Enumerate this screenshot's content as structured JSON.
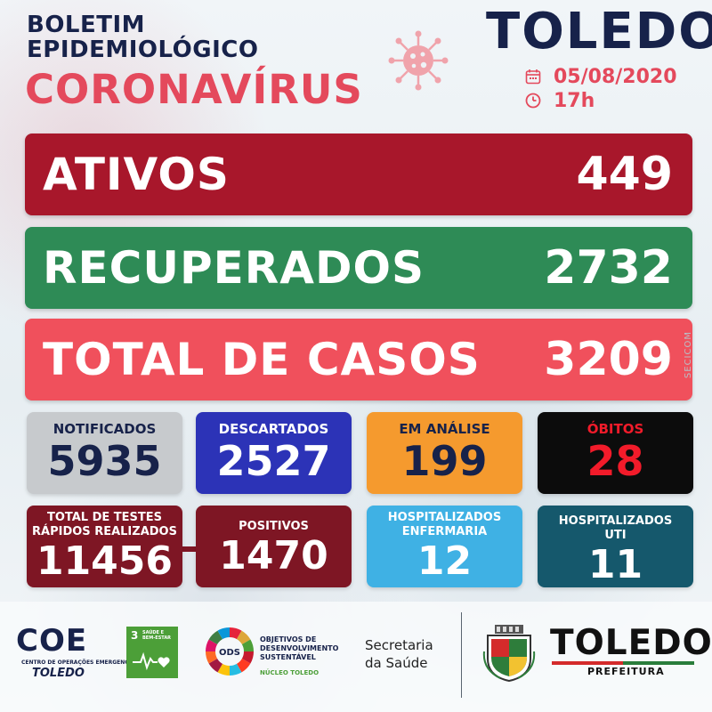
{
  "header": {
    "title_line1": "BOLETIM",
    "title_line2": "EPIDEMIOLÓGICO",
    "subtitle": "CORONAVÍRUS",
    "city": "TOLEDO",
    "date": "05/08/2020",
    "time": "17h",
    "icons": {
      "virus": "virus-icon",
      "date": "calendar-icon",
      "time": "clock-icon"
    }
  },
  "bars": {
    "ativos": {
      "label": "ATIVOS",
      "value": "449",
      "color": "#a8172b"
    },
    "recuperados": {
      "label": "RECUPERADOS",
      "value": "2732",
      "color": "#2e8b56"
    },
    "total": {
      "label": "TOTAL DE CASOS",
      "value": "3209",
      "color": "#f0505c"
    }
  },
  "cards": {
    "notificados": {
      "label": "NOTIFICADOS",
      "value": "5935"
    },
    "descartados": {
      "label": "DESCARTADOS",
      "value": "2527"
    },
    "em_analise": {
      "label": "EM ANÁLISE",
      "value": "199"
    },
    "obitos": {
      "label": "ÓBITOS",
      "value": "28"
    },
    "testes": {
      "label_line1": "TOTAL DE TESTES",
      "label_line2": "RÁPIDOS REALIZADOS",
      "value": "11456"
    },
    "positivos": {
      "label": "POSITIVOS",
      "value": "1470"
    },
    "enfermaria": {
      "label_line1": "HOSPITALIZADOS",
      "label_line2": "ENFERMARIA",
      "value": "12"
    },
    "uti": {
      "label_line1": "HOSPITALIZADOS",
      "label_line2": "UTI",
      "value": "11"
    }
  },
  "watermark": "SECICOM",
  "footer": {
    "coe": {
      "word": "COE",
      "sub": "CENTRO DE OPERAÇÕES EMERGENCIAIS",
      "city": "TOLEDO"
    },
    "sdg3": {
      "number": "3",
      "text_line1": "SAÚDE E",
      "text_line2": "BEM-ESTAR"
    },
    "ods": {
      "wheel_label": "ODS",
      "line1": "OBJETIVOS DE",
      "line2": "DESENVOLVIMENTO",
      "line3": "SUSTENTÁVEL",
      "sub": "NÚCLEO TOLEDO"
    },
    "secretaria_line1": "Secretaria",
    "secretaria_line2": "da Saúde",
    "prefeitura_city": "TOLEDO",
    "prefeitura_label": "PREFEITURA"
  }
}
